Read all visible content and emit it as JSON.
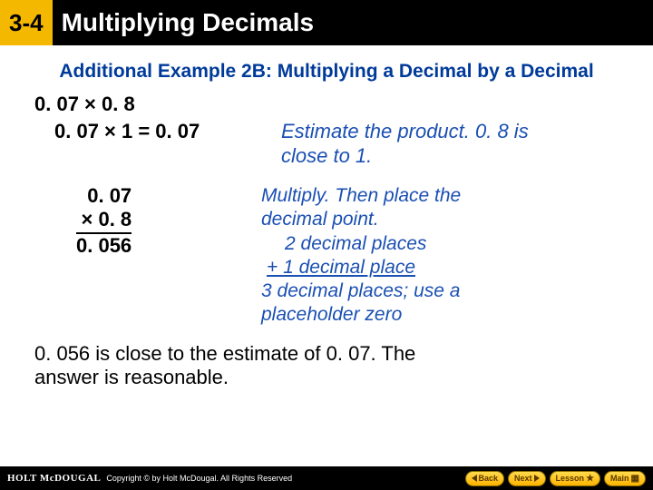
{
  "header": {
    "lesson_number": "3-4",
    "title": "Multiplying Decimals"
  },
  "subtitle": "Additional Example 2B: Multiplying a Decimal by a Decimal",
  "problem": {
    "expression": "0. 07 × 0. 8",
    "estimate_line": "0. 07 × 1 = 0. 07",
    "estimate_explain1": "Estimate the product. 0. 8 is",
    "estimate_explain2": "close to 1.",
    "work": {
      "line1": "0. 07",
      "line2": "× 0. 8",
      "line3": "0. 056"
    },
    "explain": {
      "l1": "Multiply. Then place the",
      "l2": "decimal point.",
      "l3": "2 decimal places",
      "l4": "+ 1 decimal place",
      "l5": "3 decimal places; use a",
      "l6": "placeholder zero"
    },
    "closing1": "0. 056 is close to the estimate of 0. 07. The",
    "closing2": "answer is reasonable."
  },
  "footer": {
    "brand": "HOLT McDOUGAL",
    "copyright": "Copyright © by Holt McDougal. All Rights Reserved",
    "back": "Back",
    "next": "Next",
    "lesson": "Lesson",
    "main": "Main"
  },
  "colors": {
    "badge_bg": "#f5b800",
    "header_bg": "#000000",
    "subtitle": "#003a9a",
    "explain": "#1a4fb3",
    "nav_btn_top": "#ffdb4d",
    "nav_btn_bottom": "#ffb300"
  }
}
